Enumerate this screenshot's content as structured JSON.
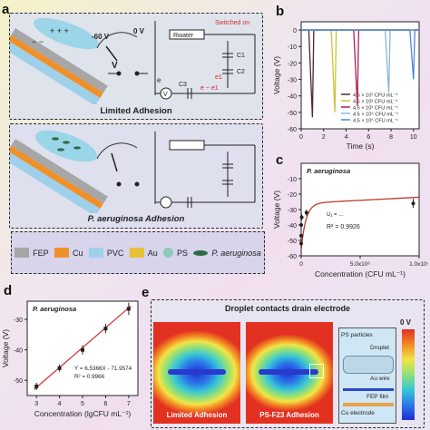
{
  "panel_a": {
    "label": "a",
    "voltage_left": "-60 V",
    "voltage_right": "0 V",
    "switch_label": "Switched on",
    "r_label": "Rwater",
    "c1": "C1",
    "c2": "C2",
    "c3": "C3",
    "v_symbol": "V",
    "e_label": "e",
    "e_minus_e1": "e − e1",
    "e1": "e1",
    "caption_top": "Limited Adhesion",
    "caption_bottom": "P. aeruginosa Adhesion",
    "legend": [
      {
        "label": "FEP",
        "color": "#a7a7a7"
      },
      {
        "label": "Cu",
        "color": "#f0902a"
      },
      {
        "label": "PVC",
        "color": "#9fd0ea"
      },
      {
        "label": "Au",
        "color": "#e6c23a"
      },
      {
        "label": "PS",
        "color": "#8ec9b9"
      },
      {
        "label": "P. aeruginosa",
        "color": "#2e6a48"
      }
    ]
  },
  "panel_b": {
    "label": "b"
  },
  "panel_c": {
    "label": "c",
    "formula_r2": "R² = 0.9926"
  },
  "panel_d": {
    "label": "d",
    "fit_eq": "Y = 6.5366X - 71.9574",
    "fit_r2": "R² = 0.9966"
  },
  "panel_e": {
    "label": "e",
    "title": "Droplet contacts drain electrode",
    "cap1": "Limited Adhesion",
    "cap2": "PS-F23 Adhesion",
    "zoom_labels": [
      "PS particles",
      "Droplet",
      "Au wire",
      "FEP film",
      "Cu electrode"
    ],
    "scale_label": "0 V"
  },
  "chart_data": [
    {
      "type": "line",
      "panel": "b",
      "xlabel": "Time (s)",
      "ylabel": "Voltage (V)",
      "xlim": [
        0,
        10.5
      ],
      "ylim": [
        -60,
        5
      ],
      "x_ticks": [
        "0",
        "2",
        "4",
        "6",
        "8",
        "10"
      ],
      "y_ticks": [
        "0",
        "-10",
        "-20",
        "-30",
        "-40",
        "-50",
        "-60"
      ],
      "series": [
        {
          "name": "4.5 × 10¹ CFU mL⁻¹",
          "color": "#4a2a2a",
          "spike_time": 1.0,
          "min": -53
        },
        {
          "name": "4.5 × 10² CFU mL⁻¹",
          "color": "#c6c63a",
          "spike_time": 3.0,
          "min": -50
        },
        {
          "name": "4.5 × 10³ CFU mL⁻¹",
          "color": "#b01e5c",
          "spike_time": 5.0,
          "min": -46
        },
        {
          "name": "4.5 × 10⁴ CFU mL⁻¹",
          "color": "#8ab6e0",
          "spike_time": 7.8,
          "min": -38
        },
        {
          "name": "4.5 × 10⁵ CFU mL⁻¹",
          "color": "#4e88d8",
          "spike_time": 10.0,
          "min": -30
        }
      ]
    },
    {
      "type": "scatter",
      "panel": "c",
      "title": "P. aeruginosa",
      "xlabel": "Concentration (CFU mL⁻¹)",
      "ylabel": "Voltage (V)",
      "xlim": [
        0,
        10000000
      ],
      "ylim": [
        -60,
        0
      ],
      "x_ticks": [
        "0",
        "5.0x10⁶",
        "1.0x10⁷"
      ],
      "y_ticks": [
        "-10",
        "-20",
        "-30",
        "-40",
        "-50",
        "-60"
      ],
      "points": [
        {
          "x": 45,
          "y": -52,
          "err": 3
        },
        {
          "x": 450,
          "y": -47,
          "err": 2
        },
        {
          "x": 4500,
          "y": -40,
          "err": 2
        },
        {
          "x": 45000,
          "y": -35,
          "err": 2
        },
        {
          "x": 450000,
          "y": -32,
          "err": 2
        },
        {
          "x": 9500000,
          "y": -26,
          "err": 3
        }
      ],
      "fit_color": "#c0392b"
    },
    {
      "type": "scatter",
      "panel": "d",
      "title": "P. aeruginosa",
      "xlabel": "Concentration (lgCFU mL⁻¹)",
      "ylabel": "Voltage (V)",
      "xlim": [
        2.6,
        7.4
      ],
      "ylim": [
        -55,
        -24
      ],
      "x_ticks": [
        "3",
        "4",
        "5",
        "6",
        "7"
      ],
      "y_ticks": [
        "-30",
        "-40",
        "-50"
      ],
      "points": [
        {
          "x": 3,
          "y": -52,
          "err": 1.2
        },
        {
          "x": 4,
          "y": -46,
          "err": 1.2
        },
        {
          "x": 5,
          "y": -40,
          "err": 1.5
        },
        {
          "x": 6,
          "y": -33,
          "err": 1.5
        },
        {
          "x": 7,
          "y": -26.5,
          "err": 2
        }
      ],
      "fit": {
        "slope": 6.5366,
        "intercept": -71.9574,
        "color": "#d13b3b"
      }
    }
  ]
}
